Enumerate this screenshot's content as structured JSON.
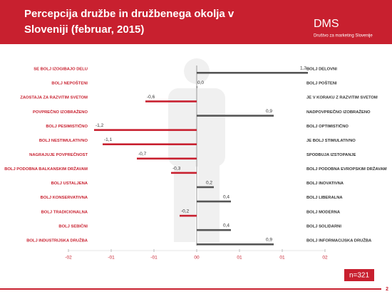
{
  "header": {
    "title_line1": "Percepcija družbe in družbenega okolja v",
    "title_line2": "Sloveniji (februar, 2015)",
    "logo": "DMS",
    "logo_subtitle": "Društvo za marketing Slovenije"
  },
  "chart_data": {
    "type": "diverging-bar",
    "categories": [
      "SE BOLJ IZOGIBAJO DELU",
      "BOLJ NEPOŠTENI",
      "ZAOSTAJA ZA RAZVITIM SVETOM",
      "POVPREČNO IZOBRAŽENO",
      "BOLJ PESIMISTIČNO",
      "BOLJ NESTIMULATIVNO",
      "NAGRAJUJE POVPREČNOST",
      "BOLJ PODOBNA BALKANSKIM DRŽAVAM",
      "BOLJ USTALJENA",
      "BOLJ KONSERVATIVNA",
      "BOLJ TRADICIONALNA",
      "BOLJ SEBIČNI",
      "BOLJ INDUSTRIJSKA DRUŽBA"
    ],
    "categories_right": [
      "BOLJ DELOVNI",
      "BOLJ POŠTENI",
      "JE V KORAKU Z RAZVITIM SVETOM",
      "NADPOVPREČNO IZOBRAŽENO",
      "BOLJ OPTIMISTIČNO",
      "JE BOLJ STIMULATIVNO",
      "SPODBUJA IZSTOPANJE",
      "BOLJ PODOBNA EVROPSKIM DRŽAVAM",
      "BOLJ INOVATIVNA",
      "BOLJ LIBERALNA",
      "BOLJ MODERNA",
      "BOLJ SOLIDARNI",
      "BOLJ INFORMACIJSKA DRUŽBA"
    ],
    "values": [
      1.3,
      0.0,
      -0.6,
      0.9,
      -1.2,
      -1.1,
      -0.7,
      -0.3,
      0.2,
      0.4,
      -0.2,
      0.4,
      0.9
    ],
    "value_labels": [
      "1,3",
      "0,0",
      "-0,6",
      "0,9",
      "-1,2",
      "-1,1",
      "-0,7",
      "-0,3",
      "0,2",
      "0,4",
      "-0,2",
      "0,4",
      "0,9"
    ],
    "negative_color": "#c8202f",
    "positive_color": "#555555",
    "xlim": [
      -1.5,
      1.5
    ],
    "xticks": [
      {
        "value": -1.5,
        "label": "-02"
      },
      {
        "value": -1,
        "label": "-01"
      },
      {
        "value": -0.5,
        "label": "-01"
      },
      {
        "value": 0,
        "label": "00"
      },
      {
        "value": 0.5,
        "label": "01"
      },
      {
        "value": 1,
        "label": "01"
      },
      {
        "value": 1.5,
        "label": "02"
      }
    ]
  },
  "sample_note": "n=321",
  "page_number": "2"
}
